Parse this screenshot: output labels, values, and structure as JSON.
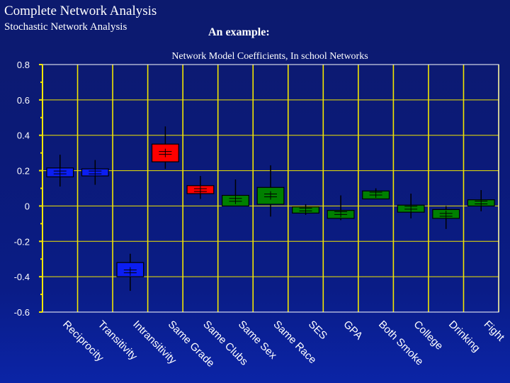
{
  "slide": {
    "title": "Complete Network Analysis",
    "subtitle": "Stochastic Network Analysis",
    "example_label": "An example:"
  },
  "colors": {
    "background": "#0b1a78",
    "grid": "#f2e600",
    "plot_border": "#ffffff",
    "median": "#000000",
    "whisker": "#000000"
  },
  "chart_data": {
    "type": "boxplot",
    "title": "Network Model Coefficients, In school Networks",
    "ylim": [
      -0.6,
      0.8
    ],
    "yticks": [
      0.8,
      0.6,
      0.4,
      0.2,
      0,
      -0.2,
      -0.4,
      -0.6
    ],
    "ytick_labels": [
      "0.8",
      "0.6",
      "0.4",
      "0.2",
      "0",
      "-0.2",
      "-0.4",
      "-0.6"
    ],
    "grid": true,
    "categories": [
      "Reciprocity",
      "Transitivity",
      "Intransitivity",
      "Same Grade",
      "Same Clubs",
      "Same Sex",
      "Same Race",
      "SES",
      "GPA",
      "Both Smoke",
      "College",
      "Drinking",
      "Fight"
    ],
    "boxes": [
      {
        "category": "Reciprocity",
        "color": "#0b1ef2",
        "min": 0.11,
        "q1": 0.165,
        "median": 0.19,
        "q3": 0.215,
        "max": 0.29
      },
      {
        "category": "Transitivity",
        "color": "#0b1ef2",
        "min": 0.12,
        "q1": 0.17,
        "median": 0.19,
        "q3": 0.21,
        "max": 0.26
      },
      {
        "category": "Intransitivity",
        "color": "#0b1ef2",
        "min": -0.48,
        "q1": -0.4,
        "median": -0.37,
        "q3": -0.32,
        "max": -0.27
      },
      {
        "category": "Same Grade",
        "color": "#ff0000",
        "min": 0.21,
        "q1": 0.25,
        "median": 0.3,
        "q3": 0.35,
        "max": 0.45
      },
      {
        "category": "Same Clubs",
        "color": "#ff0000",
        "min": 0.04,
        "q1": 0.07,
        "median": 0.09,
        "q3": 0.115,
        "max": 0.17
      },
      {
        "category": "Same Sex",
        "color": "#008000",
        "min": 0.0,
        "q1": 0.0,
        "median": 0.035,
        "q3": 0.06,
        "max": 0.15
      },
      {
        "category": "Same Race",
        "color": "#008000",
        "min": -0.06,
        "q1": 0.01,
        "median": 0.06,
        "q3": 0.105,
        "max": 0.23
      },
      {
        "category": "SES",
        "color": "#008000",
        "min": -0.05,
        "q1": -0.04,
        "median": -0.02,
        "q3": -0.005,
        "max": 0.01
      },
      {
        "category": "GPA",
        "color": "#008000",
        "min": -0.08,
        "q1": -0.07,
        "median": -0.04,
        "q3": -0.025,
        "max": 0.06
      },
      {
        "category": "Both Smoke",
        "color": "#008000",
        "min": 0.04,
        "q1": 0.04,
        "median": 0.07,
        "q3": 0.085,
        "max": 0.1
      },
      {
        "category": "College",
        "color": "#008000",
        "min": -0.07,
        "q1": -0.035,
        "median": -0.01,
        "q3": 0.005,
        "max": 0.07
      },
      {
        "category": "Drinking",
        "color": "#008000",
        "min": -0.13,
        "q1": -0.07,
        "median": -0.05,
        "q3": -0.02,
        "max": 0.0
      },
      {
        "category": "Fight",
        "color": "#008000",
        "min": -0.03,
        "q1": 0.0,
        "median": 0.02,
        "q3": 0.035,
        "max": 0.09
      }
    ]
  }
}
